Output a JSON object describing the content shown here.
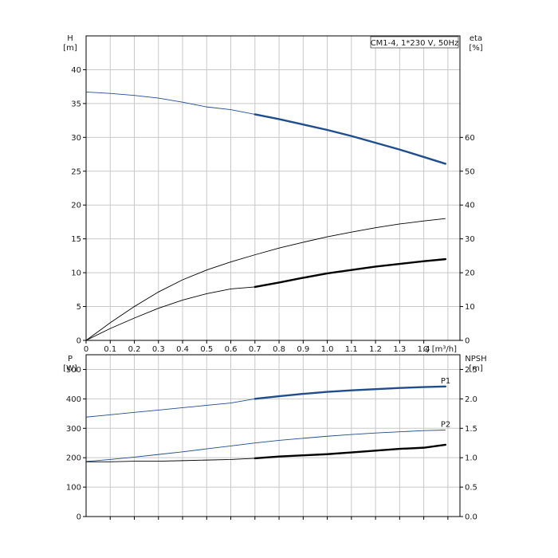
{
  "colors": {
    "blue": "#1f4e8c",
    "black": "#000000",
    "grid": "#c8c8c8"
  },
  "chart_data": [
    {
      "type": "line",
      "title": "CM1-4, 1*230 V, 50Hz",
      "xlabel": "Q [m³/h]",
      "ylabel_left": [
        "H",
        "[m]"
      ],
      "ylabel_right": [
        "eta",
        "[%]"
      ],
      "xlim": [
        0,
        1.55
      ],
      "ylim_left": [
        0,
        45
      ],
      "ylim_right": [
        0,
        90
      ],
      "x_ticks": [
        "0",
        "0.1",
        "0.2",
        "0.3",
        "0.4",
        "0.5",
        "0.6",
        "0.7",
        "0.8",
        "0.9",
        "1.0",
        "1.1",
        "1.2",
        "1.3",
        "1.4"
      ],
      "y_ticks_left": [
        "0",
        "5",
        "10",
        "15",
        "20",
        "25",
        "30",
        "35",
        "40"
      ],
      "y_ticks_right": [
        "0",
        "10",
        "20",
        "30",
        "40",
        "50",
        "60"
      ],
      "grid": true,
      "series": [
        {
          "axis": "left",
          "color": "blue",
          "duty_from": 0.7,
          "x": [
            0,
            0.1,
            0.2,
            0.3,
            0.4,
            0.5,
            0.6,
            0.7,
            0.8,
            0.9,
            1.0,
            1.1,
            1.2,
            1.3,
            1.4,
            1.49
          ],
          "y": [
            36.7,
            36.5,
            36.2,
            35.8,
            35.2,
            34.5,
            34.1,
            33.4,
            32.7,
            31.9,
            31.1,
            30.2,
            29.2,
            28.2,
            27.1,
            26.1
          ]
        },
        {
          "axis": "right",
          "color": "black",
          "duty_from": null,
          "x": [
            0,
            0.1,
            0.2,
            0.3,
            0.4,
            0.5,
            0.6,
            0.7,
            0.8,
            0.9,
            1.0,
            1.1,
            1.2,
            1.3,
            1.4,
            1.49
          ],
          "y": [
            0,
            5.2,
            10,
            14.3,
            17.9,
            20.8,
            23.2,
            25.3,
            27.3,
            29,
            30.6,
            32,
            33.3,
            34.4,
            35.3,
            36
          ]
        },
        {
          "axis": "right",
          "color": "black",
          "duty_from": 0.7,
          "x": [
            0,
            0.1,
            0.2,
            0.3,
            0.4,
            0.5,
            0.6,
            0.7,
            0.8,
            0.9,
            1.0,
            1.1,
            1.2,
            1.3,
            1.4,
            1.49
          ],
          "y": [
            0,
            3.5,
            6.6,
            9.5,
            11.9,
            13.8,
            15.2,
            15.8,
            17.1,
            18.5,
            19.8,
            20.8,
            21.8,
            22.6,
            23.4,
            24
          ]
        }
      ]
    },
    {
      "type": "line",
      "xlim": [
        0,
        1.55
      ],
      "ylabel_left": [
        "P",
        "[W]"
      ],
      "ylabel_right": [
        "NPSH",
        "[m]"
      ],
      "ylim_left": [
        0,
        550
      ],
      "ylim_right": [
        0,
        2.75
      ],
      "y_ticks_left": [
        "0",
        "100",
        "200",
        "300",
        "400",
        "500"
      ],
      "y_ticks_right": [
        "0.0",
        "0.5",
        "1.0",
        "1.5",
        "2.0",
        "2.5"
      ],
      "grid": true,
      "series": [
        {
          "name": "P1",
          "axis": "left",
          "color": "blue",
          "duty_from": 0.7,
          "x": [
            0,
            0.1,
            0.2,
            0.3,
            0.4,
            0.5,
            0.6,
            0.7,
            0.8,
            0.9,
            1.0,
            1.1,
            1.2,
            1.3,
            1.4,
            1.49
          ],
          "y": [
            338,
            346,
            354,
            362,
            370,
            378,
            386,
            400,
            409,
            417,
            424,
            429,
            433,
            437,
            440,
            442
          ]
        },
        {
          "name": "P2",
          "axis": "left",
          "color": "blue",
          "duty_from": null,
          "x": [
            0,
            0.1,
            0.2,
            0.3,
            0.4,
            0.5,
            0.6,
            0.7,
            0.8,
            0.9,
            1.0,
            1.1,
            1.2,
            1.3,
            1.4,
            1.49
          ],
          "y": [
            187,
            194,
            202,
            211,
            220,
            230,
            240,
            250,
            259,
            266,
            273,
            279,
            284,
            288,
            292,
            294
          ]
        },
        {
          "axis": "right",
          "color": "black",
          "duty_from": 0.7,
          "x": [
            0,
            0.1,
            0.2,
            0.3,
            0.4,
            0.5,
            0.6,
            0.7,
            0.8,
            0.9,
            1.0,
            1.1,
            1.2,
            1.3,
            1.4,
            1.49
          ],
          "y": [
            0.93,
            0.93,
            0.94,
            0.94,
            0.95,
            0.96,
            0.97,
            0.99,
            1.02,
            1.04,
            1.06,
            1.09,
            1.12,
            1.15,
            1.17,
            1.22
          ]
        }
      ]
    }
  ]
}
